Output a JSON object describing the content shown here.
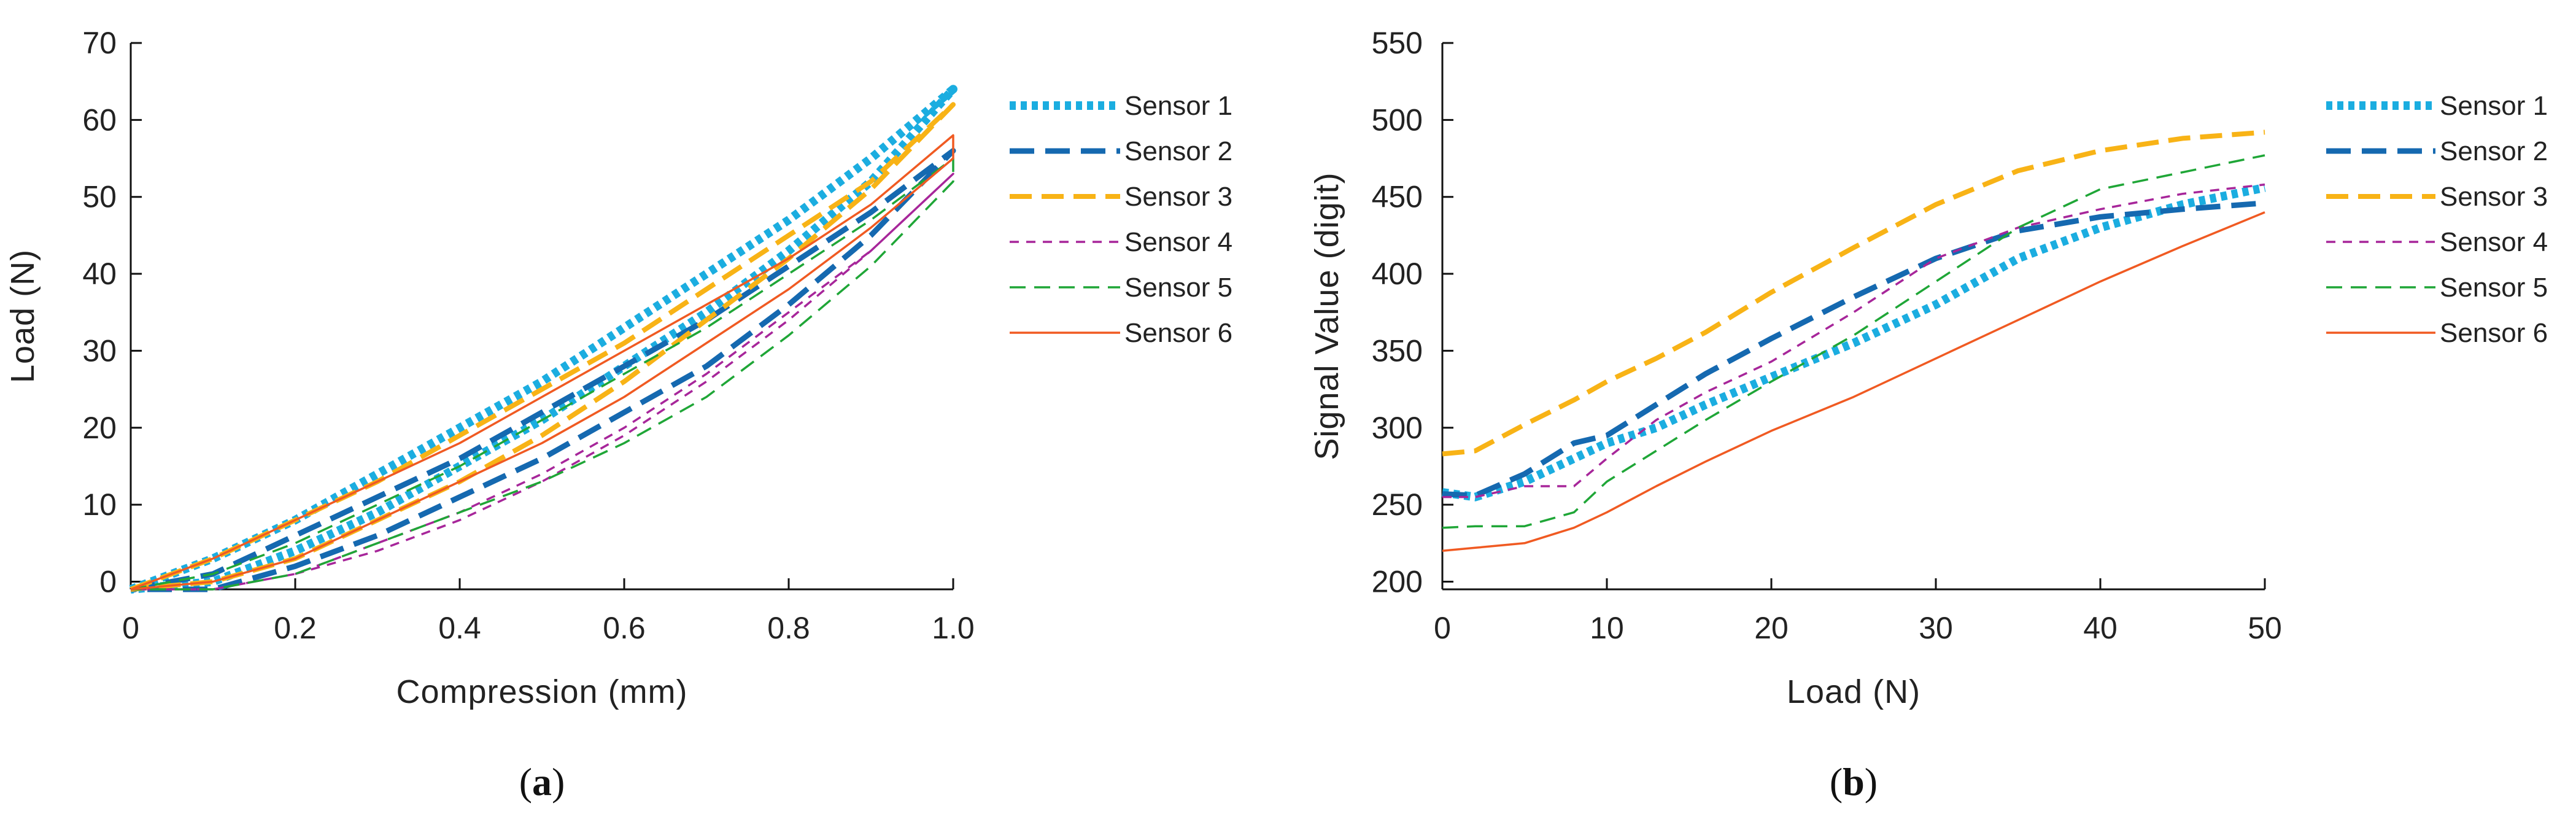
{
  "styles": {
    "Sensor 1": {
      "color": "#1BADE0",
      "dash": "10 8",
      "width": 14
    },
    "Sensor 2": {
      "color": "#1569B0",
      "dash": "40 18",
      "width": 9
    },
    "Sensor 3": {
      "color": "#F8B316",
      "dash": "36 16",
      "width": 8
    },
    "Sensor 4": {
      "color": "#A7269A",
      "dash": "15 12",
      "width": 3.5
    },
    "Sensor 5": {
      "color": "#1FA637",
      "dash": "26 14",
      "width": 3.5
    },
    "Sensor 6": {
      "color": "#F05A22",
      "dash": "",
      "width": 3.5
    }
  },
  "chart_data": [
    {
      "type": "line",
      "panel_label": "a",
      "title": "",
      "xlabel": "Compression (mm)",
      "ylabel": "Load (N)",
      "xlim": [
        0,
        1
      ],
      "ylim": [
        -1,
        70
      ],
      "xticks": [
        0,
        0.2,
        0.4,
        0.6,
        0.8,
        1.0
      ],
      "xtick_labels": [
        "0",
        "0.2",
        "0.4",
        "0.6",
        "0.8",
        "1.0"
      ],
      "yticks": [
        0,
        10,
        20,
        30,
        40,
        50,
        60,
        70
      ],
      "ytick_labels": [
        "0",
        "10",
        "20",
        "30",
        "40",
        "50",
        "60",
        "70"
      ],
      "legend": "right",
      "series": [
        {
          "name": "Sensor 1",
          "x": [
            0,
            0.1,
            0.2,
            0.3,
            0.4,
            0.5,
            0.6,
            0.7,
            0.8,
            0.9,
            1.0,
            1.0,
            0.9,
            0.8,
            0.7,
            0.6,
            0.5,
            0.4,
            0.3,
            0.2,
            0.1,
            0
          ],
          "y": [
            -1,
            3,
            8,
            14,
            20,
            26,
            33,
            40,
            47,
            55,
            64,
            64,
            52,
            43,
            35,
            28,
            21,
            15,
            9,
            4,
            0,
            -1
          ]
        },
        {
          "name": "Sensor 2",
          "x": [
            0,
            0.1,
            0.2,
            0.3,
            0.4,
            0.5,
            0.6,
            0.7,
            0.8,
            0.9,
            1.0,
            1.0,
            0.9,
            0.8,
            0.7,
            0.6,
            0.5,
            0.4,
            0.3,
            0.2,
            0.1,
            0
          ],
          "y": [
            -1,
            1,
            6,
            11,
            16,
            22,
            28,
            34,
            41,
            48,
            56,
            56,
            45,
            36,
            28,
            22,
            16,
            11,
            6,
            2,
            -1,
            -1
          ]
        },
        {
          "name": "Sensor 3",
          "x": [
            0,
            0.1,
            0.2,
            0.3,
            0.4,
            0.5,
            0.6,
            0.7,
            0.8,
            0.9,
            1.0,
            1.0,
            0.9,
            0.8,
            0.7,
            0.6,
            0.5,
            0.4,
            0.3,
            0.2,
            0.1,
            0
          ],
          "y": [
            -1,
            3,
            8,
            13,
            19,
            25,
            31,
            38,
            45,
            52,
            62,
            62,
            51,
            42,
            34,
            26,
            19,
            13,
            8,
            3,
            0,
            -1
          ]
        },
        {
          "name": "Sensor 4",
          "x": [
            0,
            0.1,
            0.2,
            0.3,
            0.4,
            0.5,
            0.6,
            0.7,
            0.8,
            0.9,
            1.0,
            1.0,
            0.9,
            0.8,
            0.7,
            0.6,
            0.5,
            0.4,
            0.3,
            0.2,
            0.1,
            0
          ],
          "y": [
            -1,
            -1,
            1,
            4,
            8,
            13,
            19,
            26,
            34,
            43,
            53,
            53,
            43,
            35,
            27,
            20,
            14,
            9,
            5,
            1,
            -1,
            -1
          ]
        },
        {
          "name": "Sensor 5",
          "x": [
            0,
            0.1,
            0.2,
            0.3,
            0.4,
            0.5,
            0.6,
            0.7,
            0.8,
            0.9,
            1.0,
            1.0,
            0.9,
            0.8,
            0.7,
            0.6,
            0.5,
            0.4,
            0.3,
            0.2,
            0.1,
            0
          ],
          "y": [
            -1,
            1,
            5,
            10,
            15,
            21,
            27,
            33,
            40,
            47,
            55,
            52,
            41,
            32,
            24,
            18,
            13,
            9,
            5,
            1,
            -1,
            -1
          ]
        },
        {
          "name": "Sensor 6",
          "x": [
            0,
            0.1,
            0.2,
            0.3,
            0.4,
            0.5,
            0.6,
            0.7,
            0.8,
            0.9,
            1.0,
            1.0,
            0.9,
            0.8,
            0.7,
            0.6,
            0.5,
            0.4,
            0.3,
            0.2,
            0.1,
            0
          ],
          "y": [
            -1,
            3,
            8,
            13,
            18,
            24,
            30,
            36,
            42,
            49,
            58,
            55,
            46,
            38,
            31,
            24,
            18,
            13,
            8,
            3,
            0,
            -1
          ]
        }
      ]
    },
    {
      "type": "line",
      "panel_label": "b",
      "title": "",
      "xlabel": "Load (N)",
      "ylabel": "Signal Value (digit)",
      "xlim": [
        0,
        50
      ],
      "ylim": [
        195,
        550
      ],
      "xticks": [
        0,
        10,
        20,
        30,
        40,
        50
      ],
      "xtick_labels": [
        "0",
        "10",
        "20",
        "30",
        "40",
        "50"
      ],
      "yticks": [
        200,
        250,
        300,
        350,
        400,
        450,
        500,
        550
      ],
      "ytick_labels": [
        "200",
        "250",
        "300",
        "350",
        "400",
        "450",
        "500",
        "550"
      ],
      "legend": "right",
      "series": [
        {
          "name": "Sensor 1",
          "x": [
            0,
            2,
            5,
            8,
            10,
            13,
            16,
            20,
            25,
            30,
            35,
            40,
            45,
            50
          ],
          "y": [
            258,
            255,
            265,
            280,
            290,
            300,
            315,
            333,
            355,
            380,
            410,
            430,
            445,
            456
          ]
        },
        {
          "name": "Sensor 2",
          "x": [
            0,
            2,
            5,
            8,
            10,
            13,
            16,
            20,
            25,
            30,
            35,
            40,
            45,
            50
          ],
          "y": [
            257,
            256,
            270,
            290,
            295,
            315,
            335,
            358,
            385,
            410,
            428,
            437,
            442,
            446
          ]
        },
        {
          "name": "Sensor 3",
          "x": [
            0,
            2,
            5,
            8,
            10,
            13,
            16,
            20,
            25,
            30,
            35,
            40,
            45,
            50
          ],
          "y": [
            283,
            285,
            302,
            318,
            330,
            345,
            362,
            388,
            417,
            445,
            467,
            480,
            488,
            492
          ]
        },
        {
          "name": "Sensor 4",
          "x": [
            0,
            2,
            5,
            8,
            10,
            13,
            16,
            20,
            25,
            30,
            35,
            40,
            45,
            50
          ],
          "y": [
            255,
            255,
            262,
            262,
            280,
            305,
            323,
            343,
            375,
            410,
            430,
            442,
            452,
            458
          ]
        },
        {
          "name": "Sensor 5",
          "x": [
            0,
            2,
            5,
            8,
            10,
            13,
            16,
            20,
            25,
            30,
            35,
            40,
            45,
            50
          ],
          "y": [
            235,
            236,
            236,
            245,
            265,
            285,
            305,
            330,
            360,
            395,
            430,
            455,
            466,
            477
          ]
        },
        {
          "name": "Sensor 6",
          "x": [
            0,
            2,
            5,
            8,
            10,
            13,
            16,
            20,
            25,
            30,
            35,
            40,
            45,
            50
          ],
          "y": [
            220,
            222,
            225,
            235,
            245,
            262,
            278,
            298,
            320,
            345,
            370,
            395,
            418,
            440
          ]
        }
      ]
    }
  ]
}
